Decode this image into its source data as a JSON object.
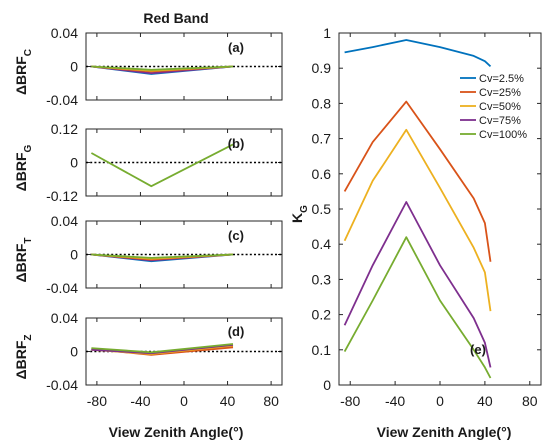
{
  "figure": {
    "title": "Red Band",
    "xlabel_left": "View Zenith Angle(°)",
    "xlabel_right": "View Zenith Angle(°)"
  },
  "series_colors": {
    "Cv=2.5%": "#0072bd",
    "Cv=25%": "#d95319",
    "Cv=50%": "#edb120",
    "Cv=75%": "#7e2f8e",
    "Cv=100%": "#77ac30"
  },
  "chart_data": [
    {
      "id": "a",
      "type": "line",
      "panel_label": "(a)",
      "ylabel_main": "ΔBRF",
      "ylabel_sub": "C",
      "xlim": [
        -90,
        90
      ],
      "ylim": [
        -0.04,
        0.04
      ],
      "xticks": [
        -80,
        -40,
        0,
        40,
        80
      ],
      "xtick_labels": [
        "-80",
        "-40",
        "0",
        "40",
        "80"
      ],
      "show_xtick_labels": false,
      "yticks": [
        0.04,
        0,
        -0.04
      ],
      "ytick_labels": [
        "0.04",
        "0",
        "-0.04"
      ],
      "zero_line": true,
      "x": [
        -85,
        -30,
        45
      ],
      "series": [
        {
          "color": "#0072bd",
          "values": [
            0,
            -0.009,
            0
          ]
        },
        {
          "color": "#7e2f8e",
          "values": [
            0,
            -0.008,
            0
          ]
        },
        {
          "color": "#d95319",
          "values": [
            0,
            -0.006,
            0
          ]
        },
        {
          "color": "#edb120",
          "values": [
            0,
            -0.005,
            0
          ]
        },
        {
          "color": "#77ac30",
          "values": [
            0,
            -0.004,
            0
          ]
        }
      ]
    },
    {
      "id": "b",
      "type": "line",
      "panel_label": "(b)",
      "ylabel_main": "ΔBRF",
      "ylabel_sub": "G",
      "xlim": [
        -90,
        90
      ],
      "ylim": [
        -0.12,
        0.12
      ],
      "xticks": [
        -80,
        -40,
        0,
        40,
        80
      ],
      "xtick_labels": [
        "-80",
        "-40",
        "0",
        "40",
        "80"
      ],
      "show_xtick_labels": false,
      "yticks": [
        0.12,
        0,
        -0.12
      ],
      "ytick_labels": [
        "0.12",
        "0",
        "-0.12"
      ],
      "zero_line": true,
      "x": [
        -85,
        -30,
        45
      ],
      "series": [
        {
          "color": "#77ac30",
          "values": [
            0.034,
            -0.085,
            0.065
          ]
        }
      ]
    },
    {
      "id": "c",
      "type": "line",
      "panel_label": "(c)",
      "ylabel_main": "ΔBRF",
      "ylabel_sub": "T",
      "xlim": [
        -90,
        90
      ],
      "ylim": [
        -0.04,
        0.04
      ],
      "xticks": [
        -80,
        -40,
        0,
        40,
        80
      ],
      "xtick_labels": [
        "-80",
        "-40",
        "0",
        "40",
        "80"
      ],
      "show_xtick_labels": false,
      "yticks": [
        0.04,
        0,
        -0.04
      ],
      "ytick_labels": [
        "0.04",
        "0",
        "-0.04"
      ],
      "zero_line": true,
      "x": [
        -85,
        -30,
        45
      ],
      "series": [
        {
          "color": "#0072bd",
          "values": [
            0,
            -0.008,
            0
          ]
        },
        {
          "color": "#7e2f8e",
          "values": [
            0,
            -0.007,
            0
          ]
        },
        {
          "color": "#d95319",
          "values": [
            0,
            -0.006,
            0
          ]
        },
        {
          "color": "#edb120",
          "values": [
            0,
            -0.005,
            0
          ]
        },
        {
          "color": "#77ac30",
          "values": [
            0,
            -0.004,
            0
          ]
        }
      ]
    },
    {
      "id": "d",
      "type": "line",
      "panel_label": "(d)",
      "ylabel_main": "ΔBRF",
      "ylabel_sub": "Z",
      "xlim": [
        -90,
        90
      ],
      "ylim": [
        -0.04,
        0.04
      ],
      "xticks": [
        -80,
        -40,
        0,
        40,
        80
      ],
      "xtick_labels": [
        "-80",
        "-40",
        "0",
        "40",
        "80"
      ],
      "show_xtick_labels": true,
      "yticks": [
        0.04,
        0,
        -0.04
      ],
      "ytick_labels": [
        "0.04",
        "0",
        "-0.04"
      ],
      "zero_line": true,
      "x": [
        -85,
        -30,
        45
      ],
      "series": [
        {
          "color": "#0072bd",
          "values": [
            0.003,
            -0.003,
            0.006
          ]
        },
        {
          "color": "#d95319",
          "values": [
            0.003,
            -0.004,
            0.005
          ]
        },
        {
          "color": "#edb120",
          "values": [
            0.002,
            -0.003,
            0.007
          ]
        },
        {
          "color": "#7e2f8e",
          "values": [
            0.002,
            -0.002,
            0.008
          ]
        },
        {
          "color": "#77ac30",
          "values": [
            0.004,
            -0.001,
            0.009
          ]
        }
      ]
    },
    {
      "id": "e",
      "type": "line",
      "panel_label": "(e)",
      "ylabel_main": "K",
      "ylabel_sub": "G",
      "xlim": [
        -90,
        90
      ],
      "ylim": [
        0,
        1
      ],
      "xticks": [
        -80,
        -40,
        0,
        40,
        80
      ],
      "xtick_labels": [
        "-80",
        "-40",
        "0",
        "40",
        "80"
      ],
      "show_xtick_labels": true,
      "yticks": [
        0,
        0.1,
        0.2,
        0.3,
        0.4,
        0.5,
        0.6,
        0.7,
        0.8,
        0.9,
        1
      ],
      "ytick_labels": [
        "0",
        "0.1",
        "0.2",
        "0.3",
        "0.4",
        "0.5",
        "0.6",
        "0.7",
        "0.8",
        "0.9",
        "1"
      ],
      "zero_line": false,
      "legend_position": "right",
      "series": [
        {
          "name": "Cv=2.5%",
          "color": "#0072bd",
          "x": [
            -85,
            -60,
            -30,
            0,
            30,
            40,
            45
          ],
          "values": [
            0.945,
            0.96,
            0.98,
            0.96,
            0.935,
            0.92,
            0.905
          ]
        },
        {
          "name": "Cv=25%",
          "color": "#d95319",
          "x": [
            -85,
            -60,
            -30,
            0,
            30,
            40,
            45
          ],
          "values": [
            0.55,
            0.69,
            0.805,
            0.67,
            0.53,
            0.46,
            0.35
          ]
        },
        {
          "name": "Cv=50%",
          "color": "#edb120",
          "x": [
            -85,
            -60,
            -30,
            0,
            30,
            40,
            45
          ],
          "values": [
            0.41,
            0.58,
            0.725,
            0.56,
            0.39,
            0.32,
            0.21
          ]
        },
        {
          "name": "Cv=75%",
          "color": "#7e2f8e",
          "x": [
            -85,
            -60,
            -30,
            0,
            30,
            40,
            45
          ],
          "values": [
            0.17,
            0.34,
            0.52,
            0.34,
            0.19,
            0.12,
            0.05
          ]
        },
        {
          "name": "Cv=100%",
          "color": "#77ac30",
          "x": [
            -85,
            -60,
            -30,
            0,
            30,
            40,
            45
          ],
          "values": [
            0.095,
            0.24,
            0.42,
            0.24,
            0.1,
            0.05,
            0.02
          ]
        }
      ]
    }
  ]
}
